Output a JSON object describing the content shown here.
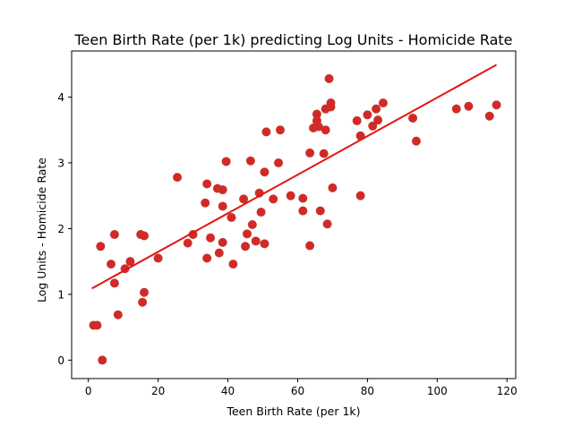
{
  "chart_data": {
    "type": "scatter",
    "title": "Teen Birth Rate (per 1k) predicting Log Units - Homicide Rate",
    "xlabel": "Teen Birth Rate (per 1k)",
    "ylabel": "Log Units - Homicide Rate",
    "xlim": [
      -4.8,
      122.5
    ],
    "ylim": [
      -0.28,
      4.7
    ],
    "xticks": [
      0,
      20,
      40,
      60,
      80,
      100,
      120
    ],
    "yticks": [
      0,
      1,
      2,
      3,
      4
    ],
    "grid": false,
    "colors": {
      "points": "#d62728",
      "point_edge": "#c0392b",
      "fit_line": "#e3150f"
    },
    "series": [
      {
        "type": "scatter",
        "points": [
          [
            1.5,
            0.53
          ],
          [
            2.5,
            0.53
          ],
          [
            3.5,
            1.73
          ],
          [
            4.0,
            0.0
          ],
          [
            6.5,
            1.46
          ],
          [
            7.5,
            1.17
          ],
          [
            7.5,
            1.91
          ],
          [
            8.5,
            0.69
          ],
          [
            10.5,
            1.39
          ],
          [
            12.0,
            1.5
          ],
          [
            15.0,
            1.91
          ],
          [
            16.0,
            1.89
          ],
          [
            15.5,
            0.88
          ],
          [
            16.0,
            1.03
          ],
          [
            20.0,
            1.55
          ],
          [
            25.5,
            2.78
          ],
          [
            28.5,
            1.78
          ],
          [
            30.0,
            1.91
          ],
          [
            34.0,
            2.68
          ],
          [
            34.0,
            1.55
          ],
          [
            33.5,
            2.39
          ],
          [
            35.0,
            1.86
          ],
          [
            37.0,
            2.61
          ],
          [
            37.5,
            1.63
          ],
          [
            38.5,
            2.59
          ],
          [
            38.5,
            1.79
          ],
          [
            38.5,
            2.34
          ],
          [
            39.5,
            3.02
          ],
          [
            41.0,
            2.17
          ],
          [
            41.5,
            1.46
          ],
          [
            44.5,
            2.45
          ],
          [
            45.0,
            1.73
          ],
          [
            45.5,
            1.92
          ],
          [
            46.5,
            3.03
          ],
          [
            47.0,
            2.06
          ],
          [
            48.0,
            1.81
          ],
          [
            49.0,
            2.54
          ],
          [
            49.5,
            2.25
          ],
          [
            50.5,
            2.86
          ],
          [
            50.5,
            1.77
          ],
          [
            51.0,
            3.47
          ],
          [
            53.0,
            2.45
          ],
          [
            54.5,
            3.0
          ],
          [
            55.0,
            3.5
          ],
          [
            58.0,
            2.5
          ],
          [
            61.5,
            2.46
          ],
          [
            61.5,
            2.27
          ],
          [
            63.5,
            3.15
          ],
          [
            63.5,
            1.74
          ],
          [
            64.5,
            3.53
          ],
          [
            65.5,
            3.64
          ],
          [
            65.5,
            3.74
          ],
          [
            66.0,
            3.55
          ],
          [
            66.5,
            2.27
          ],
          [
            67.5,
            3.14
          ],
          [
            68.0,
            3.82
          ],
          [
            68.0,
            3.5
          ],
          [
            68.5,
            2.07
          ],
          [
            69.0,
            4.28
          ],
          [
            69.5,
            3.85
          ],
          [
            69.5,
            3.91
          ],
          [
            70.0,
            2.62
          ],
          [
            77.0,
            3.64
          ],
          [
            78.0,
            3.41
          ],
          [
            78.0,
            2.5
          ],
          [
            80.0,
            3.73
          ],
          [
            81.5,
            3.56
          ],
          [
            82.5,
            3.82
          ],
          [
            83.0,
            3.65
          ],
          [
            84.5,
            3.91
          ],
          [
            93.0,
            3.68
          ],
          [
            94.0,
            3.33
          ],
          [
            105.5,
            3.82
          ],
          [
            109.0,
            3.86
          ],
          [
            115.0,
            3.71
          ],
          [
            117.0,
            3.88
          ]
        ]
      },
      {
        "type": "line",
        "points": [
          [
            1.0,
            1.09
          ],
          [
            117.0,
            4.49
          ]
        ]
      }
    ]
  }
}
